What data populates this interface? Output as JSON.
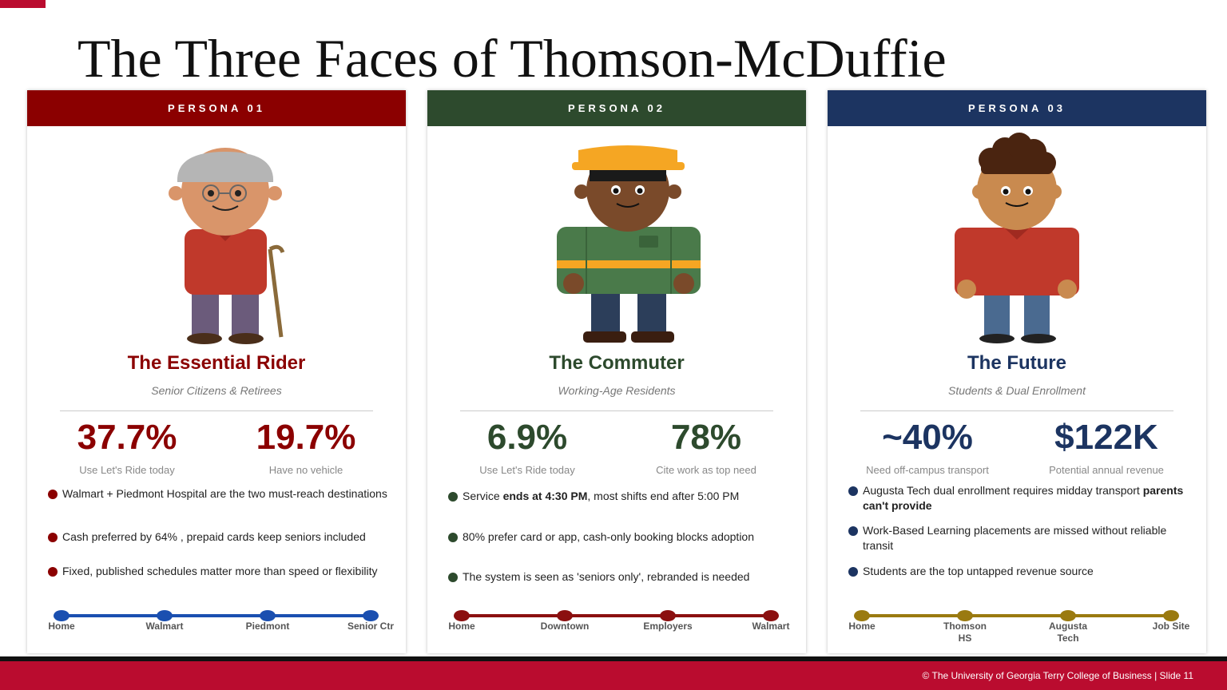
{
  "title": "The Three Faces of Thomson-McDuffie",
  "personas": [
    {
      "label": "PERSONA 01",
      "name": "The Essential Rider",
      "subtitle": "Senior Citizens & Retirees",
      "stats": [
        {
          "value": "37.7%",
          "label": "Use Let's Ride today"
        },
        {
          "value": "19.7%",
          "label": "Have no vehicle"
        }
      ],
      "bullets": [
        [
          {
            "text": "Walmart + Piedmont Hospital are the two must-reach destinations"
          }
        ],
        [
          {
            "text": "Cash preferred by 64% , prepaid cards keep seniors included"
          }
        ],
        [
          {
            "text": "Fixed, published schedules matter more than speed or flexibility"
          }
        ]
      ],
      "route": [
        "Home",
        "Walmart",
        "Piedmont",
        "Senior Ctr"
      ]
    },
    {
      "label": "PERSONA 02",
      "name": "The Commuter",
      "subtitle": "Working-Age Residents",
      "stats": [
        {
          "value": "6.9%",
          "label": "Use Let's Ride today"
        },
        {
          "value": "78%",
          "label": "Cite work as top need"
        }
      ],
      "bullets": [
        [
          {
            "text": "Service "
          },
          {
            "text": "ends at 4:30 PM",
            "bold": true
          },
          {
            "text": ", most shifts end after 5:00 PM"
          }
        ],
        [
          {
            "text": "80% prefer card or app,  cash-only booking blocks adoption"
          }
        ],
        [
          {
            "text": "The system is seen as 'seniors only', rebranded is needed"
          }
        ]
      ],
      "route": [
        "Home",
        "Downtown",
        "Employers",
        "Walmart"
      ]
    },
    {
      "label": "PERSONA 03",
      "name": "The Future",
      "subtitle": "Students & Dual Enrollment",
      "stats": [
        {
          "value": "~40%",
          "label": "Need off-campus transport"
        },
        {
          "value": "$122K",
          "label": "Potential annual revenue"
        }
      ],
      "bullets": [
        [
          {
            "text": "Augusta Tech dual enrollment requires midday transport "
          },
          {
            "text": "parents can't provide",
            "bold": true
          }
        ],
        [
          {
            "text": "Work-Based Learning placements are missed without reliable transit"
          }
        ],
        [
          {
            "text": "Students are the top untapped revenue source"
          }
        ]
      ],
      "route": [
        "Home",
        "Thomson HS",
        "Augusta Tech",
        "Job Site"
      ]
    }
  ],
  "footer": "© The University of Georgia Terry College of Business | Slide 11"
}
